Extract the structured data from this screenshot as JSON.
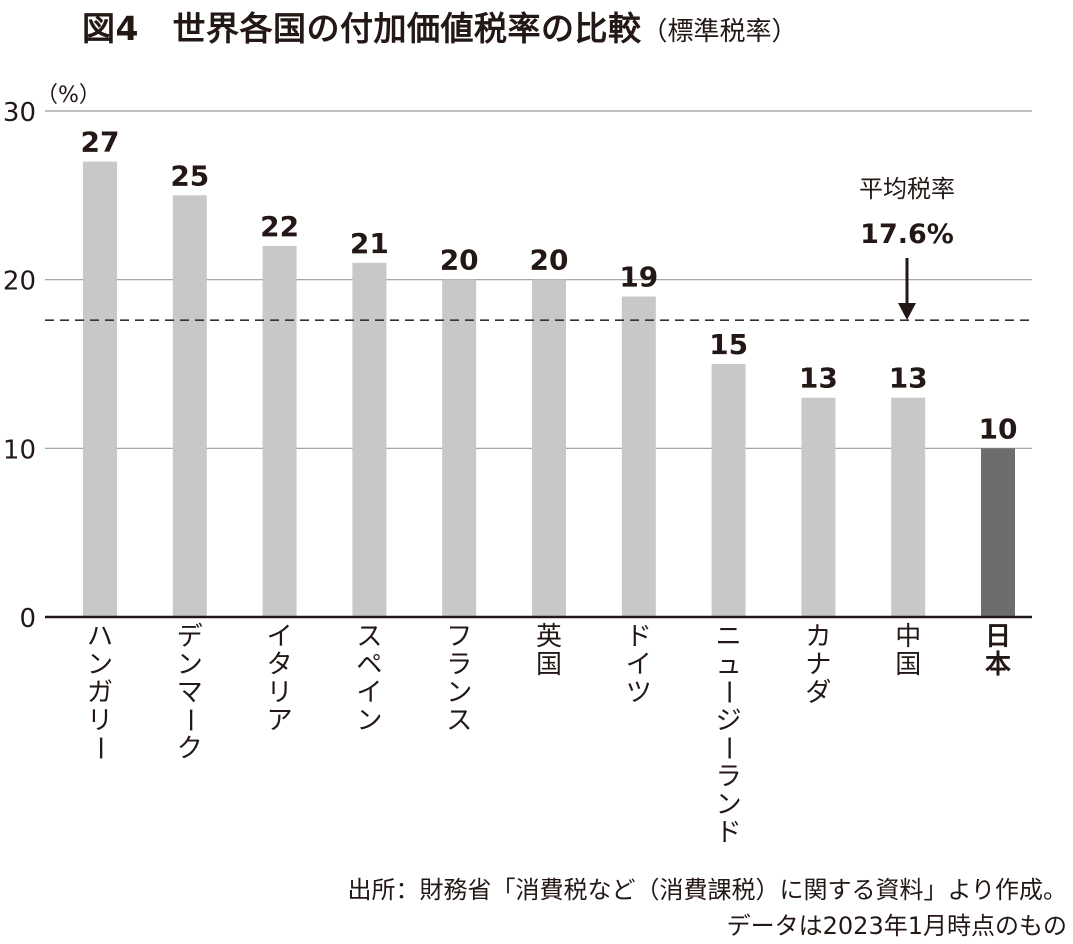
{
  "title": {
    "main": "図4　世界各国の付加価値税率の比較",
    "sub": "（標準税率）"
  },
  "y_unit": "（%）",
  "average": {
    "label": "平均税率",
    "value_label": "17.6%"
  },
  "source": {
    "line1": "出所：財務省「消費税など（消費課税）に関する資料」より作成。",
    "line2": "データは2023年1月時点のもの"
  },
  "colors": {
    "bar": "#c8c8c8",
    "highlight": "#6d6d6d",
    "grid": "#999999",
    "text": "#231815"
  },
  "chart_data": {
    "type": "bar",
    "categories": [
      "ハンガリー",
      "デンマーク",
      "イタリア",
      "スペイン",
      "フランス",
      "英国",
      "ドイツ",
      "ニュージーランド",
      "カナダ",
      "中国",
      "日本"
    ],
    "values": [
      27,
      25,
      22,
      21,
      20,
      20,
      19,
      15,
      13,
      13,
      10
    ],
    "highlight": "日本",
    "ylim": [
      0,
      30
    ],
    "yticks": [
      0,
      10,
      20,
      30
    ],
    "reference_line": 17.6,
    "grid": true
  }
}
